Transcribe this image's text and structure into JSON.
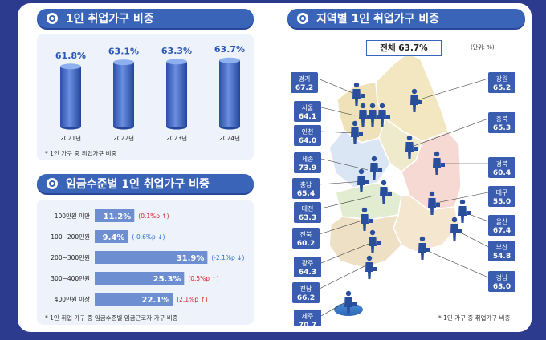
{
  "panel1": {
    "title": "1인 취업가구 비중",
    "note": "* 1인 가구 중 취업가구 비중"
  },
  "panel2": {
    "title": "임금수준별 1인 취업가구 비중",
    "note": "* 1인 취업 가구 중 임금수준별 임금근로자 가구 비중"
  },
  "panel3": {
    "title": "지역별 1인 취업가구 비중",
    "total": "전체 63.7%",
    "unit": "(단위: %)",
    "note": "* 1인 가구 중 취업가구 비중"
  },
  "colors": {
    "header": "#3a64b8",
    "cylinder": "#3f63c0",
    "bar": "#6d8fd2",
    "up": "#d8202a",
    "down": "#2a6fd6",
    "region_label": "#3a5db0"
  },
  "chart_data": [
    {
      "type": "bar",
      "categories": [
        "2021년",
        "2022년",
        "2023년",
        "2024년"
      ],
      "values": [
        61.8,
        63.1,
        63.3,
        63.7
      ],
      "value_labels": [
        "61.8%",
        "63.1%",
        "63.3%",
        "63.7%"
      ]
    },
    {
      "type": "bar",
      "orientation": "horizontal",
      "categories": [
        "100만원 미만",
        "100~200만원",
        "200~300만원",
        "300~400만원",
        "400만원 이상"
      ],
      "values": [
        11.2,
        9.4,
        31.9,
        25.3,
        22.1
      ],
      "value_labels": [
        "11.2%",
        "9.4%",
        "31.9%",
        "25.3%",
        "22.1%"
      ],
      "changes": [
        "(0.1%p ↑)",
        "(-0.6%p ↓)",
        "(-2.1%p ↓)",
        "(0.5%p ↑)",
        "(2.1%p ↑)"
      ],
      "change_direction": [
        "up",
        "down",
        "down",
        "up",
        "up"
      ]
    },
    {
      "type": "table",
      "regions": [
        {
          "name": "경기",
          "value": "67.2"
        },
        {
          "name": "서울",
          "value": "64.1"
        },
        {
          "name": "인천",
          "value": "64.0"
        },
        {
          "name": "세종",
          "value": "73.9"
        },
        {
          "name": "충남",
          "value": "65.4"
        },
        {
          "name": "대전",
          "value": "63.3"
        },
        {
          "name": "전북",
          "value": "60.2"
        },
        {
          "name": "광주",
          "value": "64.3"
        },
        {
          "name": "전남",
          "value": "66.2"
        },
        {
          "name": "제주",
          "value": "70.7"
        },
        {
          "name": "강원",
          "value": "65.2"
        },
        {
          "name": "충북",
          "value": "65.3"
        },
        {
          "name": "경북",
          "value": "60.4"
        },
        {
          "name": "대구",
          "value": "55.0"
        },
        {
          "name": "울산",
          "value": "67.4"
        },
        {
          "name": "부산",
          "value": "54.8"
        },
        {
          "name": "경남",
          "value": "63.0"
        }
      ]
    }
  ]
}
